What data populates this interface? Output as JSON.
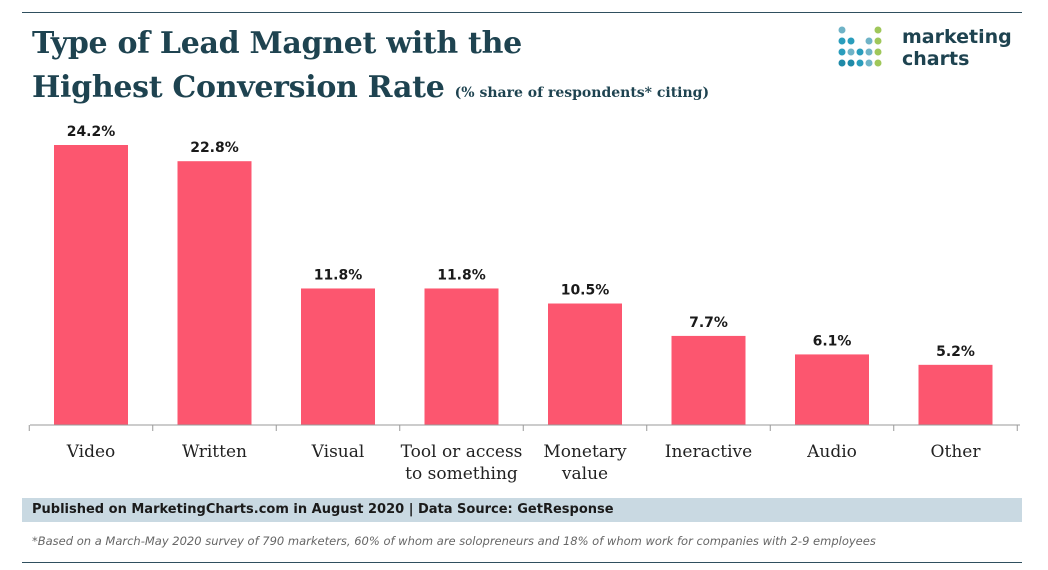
{
  "header": {
    "title_line1": "Type of Lead Magnet with the",
    "title_line2": "Highest Conversion Rate",
    "subtitle": "(% share of respondents* citing)"
  },
  "logo": {
    "line1": "marketing",
    "line2": "charts"
  },
  "colors": {
    "bar": "#fc566f",
    "title": "#1e4350",
    "source_bg": "#c9d9e2",
    "axis": "#999999"
  },
  "chart_data": {
    "type": "bar",
    "title": "Type of Lead Magnet with the Highest Conversion Rate",
    "subtitle": "(% share of respondents* citing)",
    "categories": [
      [
        "Video"
      ],
      [
        "Written"
      ],
      [
        "Visual"
      ],
      [
        "Tool or access",
        "to something"
      ],
      [
        "Monetary",
        "value"
      ],
      [
        "Ineractive"
      ],
      [
        "Audio"
      ],
      [
        "Other"
      ]
    ],
    "values": [
      24.2,
      22.8,
      11.8,
      11.8,
      10.5,
      7.7,
      6.1,
      5.2
    ],
    "value_labels": [
      "24.2%",
      "22.8%",
      "11.8%",
      "11.8%",
      "10.5%",
      "7.7%",
      "6.1%",
      "5.2%"
    ],
    "unit": "%",
    "ylim": [
      0,
      24.2
    ],
    "grid": false,
    "xlabel": "",
    "ylabel": ""
  },
  "footer": {
    "source": "Published on MarketingCharts.com in August 2020 | Data Source: GetResponse",
    "note": "*Based on a March-May 2020 survey of 790 marketers, 60% of whom are solopreneurs and 18% of whom work for companies with 2-9 employees"
  }
}
